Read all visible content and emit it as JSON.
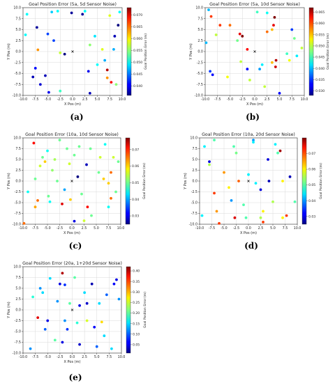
{
  "chart_data": [
    {
      "type": "scatter",
      "caption": "(a)",
      "title": "Goal Position Error (5a, 5d Sensor Noise)",
      "xlabel": "X Pos (m)",
      "ylabel": "Y Pos (m)",
      "colorbar_label": "Goal Position Error (m)",
      "xlim": [
        -10,
        10
      ],
      "ylim": [
        -10,
        10
      ],
      "xticks": [
        "-10.0",
        "-7.5",
        "-5.0",
        "-2.5",
        "0.0",
        "2.5",
        "5.0",
        "7.5",
        "10.0"
      ],
      "yticks": [
        "10.0",
        "7.5",
        "5.0",
        "2.5",
        "0.0",
        "-2.5",
        "-5.0",
        "-7.5",
        "-10.0"
      ],
      "cbar_range": [
        0.036,
        0.073
      ],
      "cbar_ticks": [
        "0.070",
        "0.065",
        "0.060",
        "0.055",
        "0.050",
        "0.045",
        "0.040"
      ],
      "grid": true,
      "origin_marker": [
        0,
        0
      ],
      "points": [
        {
          "x": -9.5,
          "y": 3.8,
          "v": 0.05
        },
        {
          "x": -9.2,
          "y": 8.5,
          "v": 0.05
        },
        {
          "x": -8.0,
          "y": -5.8,
          "v": 0.038
        },
        {
          "x": -7.5,
          "y": -3.8,
          "v": 0.041
        },
        {
          "x": -7.2,
          "y": 5.5,
          "v": 0.037
        },
        {
          "x": -7.0,
          "y": 0.4,
          "v": 0.063
        },
        {
          "x": -6.5,
          "y": -7.5,
          "v": 0.039
        },
        {
          "x": -5.5,
          "y": -5.5,
          "v": 0.038
        },
        {
          "x": -5.0,
          "y": 4.0,
          "v": 0.043
        },
        {
          "x": -4.8,
          "y": -9.3,
          "v": 0.04
        },
        {
          "x": -4.2,
          "y": 9.0,
          "v": 0.048
        },
        {
          "x": -3.8,
          "y": 2.5,
          "v": 0.043
        },
        {
          "x": -3.0,
          "y": 9.2,
          "v": 0.05
        },
        {
          "x": -2.5,
          "y": -0.3,
          "v": 0.057
        },
        {
          "x": -1.6,
          "y": -0.6,
          "v": 0.036
        },
        {
          "x": -2.5,
          "y": -9.0,
          "v": 0.052
        },
        {
          "x": -0.2,
          "y": 8.8,
          "v": 0.037
        },
        {
          "x": 2.0,
          "y": 8.5,
          "v": 0.037
        },
        {
          "x": 2.5,
          "y": 9.2,
          "v": 0.05
        },
        {
          "x": 3.5,
          "y": 1.5,
          "v": 0.055
        },
        {
          "x": 3.2,
          "y": -4.5,
          "v": 0.04
        },
        {
          "x": 3.5,
          "y": -9.5,
          "v": 0.038
        },
        {
          "x": 4.5,
          "y": 3.5,
          "v": 0.049
        },
        {
          "x": 5.0,
          "y": -3.0,
          "v": 0.05
        },
        {
          "x": 6.0,
          "y": 0.5,
          "v": 0.058
        },
        {
          "x": 6.5,
          "y": -2.0,
          "v": 0.047
        },
        {
          "x": 7.0,
          "y": -4.2,
          "v": 0.071
        },
        {
          "x": 7.0,
          "y": -6.0,
          "v": 0.063
        },
        {
          "x": 7.5,
          "y": 8.2,
          "v": 0.058
        },
        {
          "x": 7.8,
          "y": -7.0,
          "v": 0.068
        },
        {
          "x": 8.3,
          "y": 0.5,
          "v": 0.047
        },
        {
          "x": 8.5,
          "y": 3.5,
          "v": 0.038
        },
        {
          "x": 8.8,
          "y": -7.5,
          "v": 0.055
        },
        {
          "x": 9.2,
          "y": 6.0,
          "v": 0.036
        },
        {
          "x": 9.5,
          "y": 9.0,
          "v": 0.05
        }
      ]
    },
    {
      "type": "scatter",
      "caption": "(b)",
      "title": "Goal Position Error (5a, 10d Sensor Noise)",
      "xlabel": "X Pos (m)",
      "ylabel": "Y Pos (m)",
      "colorbar_label": "Goal Position Error (m)",
      "xlim": [
        -10,
        10
      ],
      "ylim": [
        -10,
        10
      ],
      "xticks": [
        "-10.0",
        "-7.5",
        "-5.0",
        "-2.5",
        "0.0",
        "2.5",
        "5.0",
        "7.5",
        "10.0"
      ],
      "yticks": [
        "10.0",
        "7.5",
        "5.0",
        "2.5",
        "0.0",
        "-2.5",
        "-5.0",
        "-7.5",
        "-10.0"
      ],
      "cbar_range": [
        0.028,
        0.067
      ],
      "cbar_ticks": [
        "0.065",
        "0.060",
        "0.055",
        "0.050",
        "0.045",
        "0.040",
        "0.035",
        "0.030"
      ],
      "grid": true,
      "origin_marker": [
        0,
        0
      ],
      "points": [
        {
          "x": -9.3,
          "y": 9.5,
          "v": 0.04
        },
        {
          "x": -8.8,
          "y": 8.0,
          "v": 0.06
        },
        {
          "x": -9.0,
          "y": -4.5,
          "v": 0.035
        },
        {
          "x": -8.5,
          "y": -5.3,
          "v": 0.033
        },
        {
          "x": -7.8,
          "y": 3.8,
          "v": 0.05
        },
        {
          "x": -7.0,
          "y": 6.0,
          "v": 0.06
        },
        {
          "x": -5.5,
          "y": -5.8,
          "v": 0.052
        },
        {
          "x": -5.0,
          "y": 6.0,
          "v": 0.058
        },
        {
          "x": -3.5,
          "y": 2.5,
          "v": 0.047
        },
        {
          "x": -3.0,
          "y": 4.0,
          "v": 0.063
        },
        {
          "x": -2.5,
          "y": 3.5,
          "v": 0.067
        },
        {
          "x": -1.5,
          "y": 0.5,
          "v": 0.062
        },
        {
          "x": -1.5,
          "y": -4.0,
          "v": 0.033
        },
        {
          "x": -1.0,
          "y": -6.5,
          "v": 0.05
        },
        {
          "x": 0.5,
          "y": 9.0,
          "v": 0.045
        },
        {
          "x": 1.0,
          "y": -4.0,
          "v": 0.039
        },
        {
          "x": 1.5,
          "y": -3.0,
          "v": 0.042
        },
        {
          "x": 2.5,
          "y": 8.8,
          "v": 0.043
        },
        {
          "x": 2.0,
          "y": -8.0,
          "v": 0.05
        },
        {
          "x": 2.5,
          "y": 4.5,
          "v": 0.058
        },
        {
          "x": 3.5,
          "y": 5.0,
          "v": 0.055
        },
        {
          "x": 3.8,
          "y": 6.0,
          "v": 0.063
        },
        {
          "x": 4.0,
          "y": 7.8,
          "v": 0.067
        },
        {
          "x": 3.5,
          "y": -2.5,
          "v": 0.055
        },
        {
          "x": 4.3,
          "y": -2.0,
          "v": 0.065
        },
        {
          "x": 4.2,
          "y": -3.5,
          "v": 0.064
        },
        {
          "x": 5.0,
          "y": -9.5,
          "v": 0.033
        },
        {
          "x": 6.5,
          "y": -0.5,
          "v": 0.045
        },
        {
          "x": 7.5,
          "y": 5.0,
          "v": 0.035
        },
        {
          "x": 7.0,
          "y": -2.0,
          "v": 0.052
        },
        {
          "x": 8.0,
          "y": 3.0,
          "v": 0.047
        },
        {
          "x": 8.5,
          "y": -1.0,
          "v": 0.042
        },
        {
          "x": 9.5,
          "y": 0.8,
          "v": 0.05
        },
        {
          "x": -2.8,
          "y": -2.3,
          "v": 0.05
        },
        {
          "x": -9.8,
          "y": 2.0,
          "v": 0.04
        }
      ]
    },
    {
      "type": "scatter",
      "caption": "(c)",
      "title": "Goal Position Error (10a, 10d Sensor Noise)",
      "xlabel": "X Pos (m)",
      "ylabel": "Y Pos (m)",
      "colorbar_label": "Goal Position Error (m)",
      "xlim": [
        -10,
        10
      ],
      "ylim": [
        -10,
        10
      ],
      "xticks": [
        "-10.0",
        "-7.5",
        "-5.0",
        "-2.5",
        "0.0",
        "2.5",
        "5.0",
        "7.5",
        "10.0"
      ],
      "yticks": [
        "10.0",
        "7.5",
        "5.0",
        "2.5",
        "0.0",
        "-2.5",
        "-5.0",
        "-7.5",
        "-10.0"
      ],
      "cbar_range": [
        0.025,
        0.077
      ],
      "cbar_ticks": [
        "0.07",
        "0.06",
        "0.05",
        "0.04",
        "0.03"
      ],
      "grid": true,
      "origin_marker": [
        0,
        0
      ],
      "points": [
        {
          "x": -9.8,
          "y": -9.8,
          "v": 0.065
        },
        {
          "x": -9.0,
          "y": -2.5,
          "v": 0.045
        },
        {
          "x": -7.8,
          "y": 8.8,
          "v": 0.07
        },
        {
          "x": -7.5,
          "y": 0.5,
          "v": 0.05
        },
        {
          "x": -7.0,
          "y": -4.5,
          "v": 0.065
        },
        {
          "x": -7.5,
          "y": -6.0,
          "v": 0.062
        },
        {
          "x": -6.0,
          "y": 5.5,
          "v": 0.05
        },
        {
          "x": -6.5,
          "y": 3.5,
          "v": 0.055
        },
        {
          "x": -5.5,
          "y": 4.5,
          "v": 0.06
        },
        {
          "x": -5.0,
          "y": 7.0,
          "v": 0.045
        },
        {
          "x": -4.8,
          "y": -3.5,
          "v": 0.05
        },
        {
          "x": -4.5,
          "y": -4.8,
          "v": 0.045
        },
        {
          "x": -4.0,
          "y": 2.5,
          "v": 0.052
        },
        {
          "x": -3.5,
          "y": 5.0,
          "v": 0.053
        },
        {
          "x": -3.0,
          "y": 0.0,
          "v": 0.05
        },
        {
          "x": -2.5,
          "y": 9.5,
          "v": 0.05
        },
        {
          "x": -2.0,
          "y": -5.3,
          "v": 0.072
        },
        {
          "x": -1.5,
          "y": -2.0,
          "v": 0.04
        },
        {
          "x": -1.0,
          "y": 7.5,
          "v": 0.05
        },
        {
          "x": -0.5,
          "y": 4.0,
          "v": 0.055
        },
        {
          "x": -0.3,
          "y": -4.3,
          "v": 0.06
        },
        {
          "x": 0.5,
          "y": 6.0,
          "v": 0.05
        },
        {
          "x": 0.5,
          "y": -9.3,
          "v": 0.03
        },
        {
          "x": 1.2,
          "y": 1.0,
          "v": 0.025
        },
        {
          "x": 1.5,
          "y": 8.0,
          "v": 0.05
        },
        {
          "x": 2.0,
          "y": -3.0,
          "v": 0.05
        },
        {
          "x": 2.5,
          "y": -9.2,
          "v": 0.055
        },
        {
          "x": 3.0,
          "y": 3.8,
          "v": 0.028
        },
        {
          "x": 3.2,
          "y": -6.0,
          "v": 0.07
        },
        {
          "x": 3.8,
          "y": 7.5,
          "v": 0.05
        },
        {
          "x": 4.0,
          "y": -8.0,
          "v": 0.05
        },
        {
          "x": 5.5,
          "y": 2.0,
          "v": 0.05
        },
        {
          "x": 5.8,
          "y": 5.5,
          "v": 0.055
        },
        {
          "x": 6.5,
          "y": 0.5,
          "v": 0.06
        },
        {
          "x": 6.8,
          "y": 8.5,
          "v": 0.045
        },
        {
          "x": 7.5,
          "y": -0.5,
          "v": 0.06
        },
        {
          "x": 8.0,
          "y": 2.0,
          "v": 0.065
        },
        {
          "x": 8.0,
          "y": -4.0,
          "v": 0.065
        },
        {
          "x": 7.5,
          "y": -6.0,
          "v": 0.045
        },
        {
          "x": 8.5,
          "y": 5.5,
          "v": 0.055
        },
        {
          "x": 9.5,
          "y": 4.5,
          "v": 0.05
        },
        {
          "x": 9.0,
          "y": -2.5,
          "v": 0.05
        }
      ]
    },
    {
      "type": "scatter",
      "caption": "(d)",
      "title": "Goal Position Error (10a, 20d Sensor Noise)",
      "xlabel": "X Pos (m)",
      "ylabel": "Y Pos (m)",
      "colorbar_label": "Goal Position Error (m)",
      "xlim": [
        -10,
        10
      ],
      "ylim": [
        -10,
        10
      ],
      "xticks": [
        "-10.0",
        "-7.5",
        "-5.0",
        "-2.5",
        "0.0",
        "2.5",
        "5.0",
        "7.5",
        "10.0"
      ],
      "yticks": [
        "10.0",
        "7.5",
        "5.0",
        "2.5",
        "0.0",
        "-2.5",
        "-5.0",
        "-7.5",
        "-10.0"
      ],
      "cbar_range": [
        0.025,
        0.08
      ],
      "cbar_ticks": [
        "0.07",
        "0.06",
        "0.05",
        "0.04",
        "0.03"
      ],
      "grid": true,
      "origin_marker": [
        0,
        0
      ],
      "points": [
        {
          "x": -9.5,
          "y": -8.0,
          "v": 0.045
        },
        {
          "x": -9.0,
          "y": 8.0,
          "v": 0.045
        },
        {
          "x": -8.0,
          "y": 4.5,
          "v": 0.03
        },
        {
          "x": -8.0,
          "y": 3.8,
          "v": 0.055
        },
        {
          "x": -7.0,
          "y": 9.5,
          "v": 0.05
        },
        {
          "x": -7.0,
          "y": -2.8,
          "v": 0.07
        },
        {
          "x": -6.5,
          "y": -7.0,
          "v": 0.065
        },
        {
          "x": -6.0,
          "y": -9.8,
          "v": 0.07
        },
        {
          "x": -5.0,
          "y": 2.0,
          "v": 0.065
        },
        {
          "x": -4.0,
          "y": -1.5,
          "v": 0.06
        },
        {
          "x": -3.5,
          "y": -4.5,
          "v": 0.04
        },
        {
          "x": -3.0,
          "y": 8.0,
          "v": 0.05
        },
        {
          "x": -2.5,
          "y": 6.5,
          "v": 0.052
        },
        {
          "x": -2.8,
          "y": -8.5,
          "v": 0.075
        },
        {
          "x": -2.0,
          "y": 0.0,
          "v": 0.068
        },
        {
          "x": -1.0,
          "y": -5.5,
          "v": 0.05
        },
        {
          "x": -0.5,
          "y": -8.5,
          "v": 0.05
        },
        {
          "x": 0.0,
          "y": 1.5,
          "v": 0.045
        },
        {
          "x": 1.0,
          "y": 9.5,
          "v": 0.04
        },
        {
          "x": 1.0,
          "y": 9.0,
          "v": 0.045
        },
        {
          "x": 1.5,
          "y": -0.5,
          "v": 0.045
        },
        {
          "x": 2.5,
          "y": -2.0,
          "v": 0.03
        },
        {
          "x": 2.5,
          "y": -8.5,
          "v": 0.055
        },
        {
          "x": 3.0,
          "y": -9.5,
          "v": 0.07
        },
        {
          "x": 3.0,
          "y": -7.0,
          "v": 0.06
        },
        {
          "x": 4.0,
          "y": 5.0,
          "v": 0.03
        },
        {
          "x": 4.2,
          "y": 0.0,
          "v": 0.028
        },
        {
          "x": 5.0,
          "y": -4.8,
          "v": 0.055
        },
        {
          "x": 5.5,
          "y": 8.5,
          "v": 0.045
        },
        {
          "x": 6.0,
          "y": 6.5,
          "v": 0.05
        },
        {
          "x": 6.5,
          "y": 7.0,
          "v": 0.078
        },
        {
          "x": 7.0,
          "y": 0.0,
          "v": 0.06
        },
        {
          "x": 7.0,
          "y": -8.5,
          "v": 0.06
        },
        {
          "x": 7.8,
          "y": -8.0,
          "v": 0.07
        },
        {
          "x": 8.5,
          "y": 1.0,
          "v": 0.028
        },
        {
          "x": 9.5,
          "y": -4.8,
          "v": 0.05
        }
      ]
    },
    {
      "type": "scatter",
      "caption": "(e)",
      "title": "Goal Position Error (20a, 1+20d Sensor Noise)",
      "xlabel": "X Pos (m)",
      "ylabel": "Y Pos (m)",
      "colorbar_label": "Goal Position Error (m)",
      "xlim": [
        -10,
        10
      ],
      "ylim": [
        -10,
        10
      ],
      "xticks": [
        "-10.0",
        "-7.5",
        "-5.0",
        "-2.5",
        "0.0",
        "2.5",
        "5.0",
        "7.5",
        "10.0"
      ],
      "yticks": [
        "10.0",
        "7.5",
        "5.0",
        "2.5",
        "0.0",
        "-2.5",
        "-5.0",
        "-7.5",
        "-10.0"
      ],
      "cbar_range": [
        0.01,
        0.42
      ],
      "cbar_ticks": [
        "0.40",
        "0.35",
        "0.30",
        "0.25",
        "0.20",
        "0.15",
        "0.10",
        "0.05"
      ],
      "grid": true,
      "origin_marker": [
        0,
        0
      ],
      "points": [
        {
          "x": -8.5,
          "y": -9.0,
          "v": 0.12
        },
        {
          "x": -8.0,
          "y": 3.0,
          "v": 0.18
        },
        {
          "x": -7.0,
          "y": -1.8,
          "v": 0.38
        },
        {
          "x": -6.5,
          "y": 5.0,
          "v": 0.12
        },
        {
          "x": -6.0,
          "y": 4.0,
          "v": 0.15
        },
        {
          "x": -5.5,
          "y": -4.5,
          "v": 0.1
        },
        {
          "x": -5.0,
          "y": -2.5,
          "v": 0.05
        },
        {
          "x": -4.5,
          "y": 7.3,
          "v": 0.15
        },
        {
          "x": -3.5,
          "y": -7.0,
          "v": 0.2
        },
        {
          "x": -3.0,
          "y": 2.0,
          "v": 0.12
        },
        {
          "x": -2.5,
          "y": 6.0,
          "v": 0.05
        },
        {
          "x": -2.0,
          "y": 8.5,
          "v": 0.4
        },
        {
          "x": -2.0,
          "y": -7.5,
          "v": 0.05
        },
        {
          "x": -1.5,
          "y": 5.8,
          "v": 0.08
        },
        {
          "x": -1.5,
          "y": -2.5,
          "v": 0.12
        },
        {
          "x": -1.0,
          "y": -4.5,
          "v": 0.08
        },
        {
          "x": -0.5,
          "y": 1.5,
          "v": 0.2
        },
        {
          "x": 0.5,
          "y": 7.5,
          "v": 0.2
        },
        {
          "x": 1.0,
          "y": -3.0,
          "v": 0.18
        },
        {
          "x": 1.5,
          "y": 1.0,
          "v": 0.05
        },
        {
          "x": 1.5,
          "y": -8.0,
          "v": 0.04
        },
        {
          "x": 2.5,
          "y": 4.0,
          "v": 0.15
        },
        {
          "x": 3.0,
          "y": 1.5,
          "v": 0.04
        },
        {
          "x": 3.0,
          "y": -2.5,
          "v": 0.25
        },
        {
          "x": 4.0,
          "y": 6.0,
          "v": 0.03
        },
        {
          "x": 4.5,
          "y": -4.0,
          "v": 0.06
        },
        {
          "x": 5.0,
          "y": -8.5,
          "v": 0.1
        },
        {
          "x": 5.5,
          "y": 1.5,
          "v": 0.15
        },
        {
          "x": 6.0,
          "y": -2.8,
          "v": 0.28
        },
        {
          "x": 6.5,
          "y": -6.0,
          "v": 0.15
        },
        {
          "x": 7.0,
          "y": 3.5,
          "v": 0.1
        },
        {
          "x": 8.0,
          "y": -9.0,
          "v": 0.15
        },
        {
          "x": 9.0,
          "y": 7.0,
          "v": 0.05
        },
        {
          "x": 9.5,
          "y": 2.5,
          "v": 0.12
        },
        {
          "x": 8.5,
          "y": 6.0,
          "v": 0.06
        }
      ]
    }
  ]
}
